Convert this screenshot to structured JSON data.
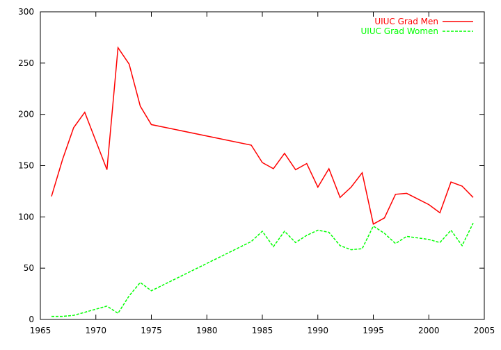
{
  "chart_data": {
    "type": "line",
    "title": "",
    "xlabel": "",
    "ylabel": "",
    "xlim": [
      1965,
      2005
    ],
    "ylim": [
      0,
      300
    ],
    "x_ticks": [
      "1965",
      "1970",
      "1975",
      "1980",
      "1985",
      "1990",
      "1995",
      "2000",
      "2005"
    ],
    "y_ticks": [
      "0",
      "50",
      "100",
      "150",
      "200",
      "250",
      "300"
    ],
    "grid": false,
    "legend_position": "top-right",
    "series": [
      {
        "name": "UIUC Grad Men",
        "color": "#ff0000",
        "style": "solid",
        "x": [
          1966,
          1967,
          1968,
          1969,
          1970,
          1971,
          1972,
          1973,
          1974,
          1975,
          1984,
          1985,
          1986,
          1987,
          1988,
          1989,
          1990,
          1991,
          1992,
          1993,
          1994,
          1995,
          1996,
          1997,
          1998,
          2000,
          2001,
          2002,
          2003,
          2004
        ],
        "y": [
          120,
          156,
          187,
          202,
          174,
          146,
          265,
          249,
          208,
          190,
          170,
          153,
          147,
          162,
          146,
          152,
          129,
          147,
          119,
          129,
          143,
          93,
          99,
          122,
          123,
          112,
          104,
          134,
          130,
          119
        ]
      },
      {
        "name": "UIUC Grad Women",
        "color": "#00ff00",
        "style": "dashed",
        "x": [
          1966,
          1967,
          1968,
          1969,
          1970,
          1971,
          1972,
          1973,
          1974,
          1975,
          1984,
          1985,
          1986,
          1987,
          1988,
          1989,
          1990,
          1991,
          1992,
          1993,
          1994,
          1995,
          1996,
          1997,
          1998,
          2000,
          2001,
          2002,
          2003,
          2004
        ],
        "y": [
          3,
          3,
          4,
          7,
          10,
          13,
          6,
          23,
          36,
          28,
          76,
          86,
          71,
          86,
          75,
          82,
          87,
          85,
          72,
          68,
          69,
          91,
          84,
          74,
          81,
          78,
          75,
          87,
          72,
          94
        ]
      }
    ]
  }
}
